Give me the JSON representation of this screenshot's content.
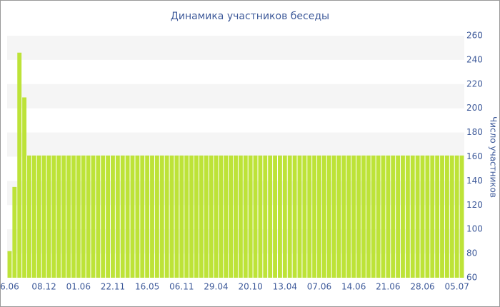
{
  "chart_data": {
    "type": "bar",
    "title": "Динамика участников беседы",
    "y_label": "Число участников",
    "categories": [
      "6.06",
      null,
      null,
      null,
      null,
      null,
      null,
      "08.12",
      null,
      null,
      null,
      null,
      null,
      null,
      "01.06",
      null,
      null,
      null,
      null,
      null,
      null,
      "22.11",
      null,
      null,
      null,
      null,
      null,
      null,
      "16.05",
      null,
      null,
      null,
      null,
      null,
      null,
      "06.11",
      null,
      null,
      null,
      null,
      null,
      null,
      "29.04",
      null,
      null,
      null,
      null,
      null,
      null,
      "20.10",
      null,
      null,
      null,
      null,
      null,
      null,
      "13.04",
      null,
      null,
      null,
      null,
      null,
      null,
      "07.06",
      null,
      null,
      null,
      null,
      null,
      null,
      "14.06",
      null,
      null,
      null,
      null,
      null,
      null,
      "21.06",
      null,
      null,
      null,
      null,
      null,
      null,
      "28.06",
      null,
      null,
      null,
      null,
      null,
      null,
      "05.07",
      null
    ],
    "values": [
      82,
      135,
      246,
      209,
      161,
      161,
      161,
      161,
      161,
      161,
      161,
      161,
      161,
      161,
      161,
      161,
      161,
      161,
      161,
      161,
      161,
      161,
      161,
      161,
      161,
      161,
      161,
      161,
      161,
      161,
      161,
      161,
      161,
      161,
      161,
      161,
      161,
      161,
      161,
      161,
      161,
      161,
      161,
      161,
      161,
      161,
      161,
      161,
      161,
      161,
      161,
      161,
      161,
      161,
      161,
      161,
      161,
      161,
      161,
      161,
      161,
      161,
      161,
      161,
      161,
      161,
      161,
      161,
      161,
      161,
      161,
      161,
      161,
      161,
      161,
      161,
      161,
      161,
      161,
      161,
      161,
      161,
      161,
      161,
      161,
      161,
      161,
      161,
      161,
      161,
      161,
      161,
      161
    ],
    "color": "#bde338",
    "ylim": [
      60,
      260
    ],
    "yticks": [
      60,
      80,
      100,
      120,
      140,
      160,
      180,
      200,
      220,
      240,
      260
    ],
    "grid": true
  }
}
